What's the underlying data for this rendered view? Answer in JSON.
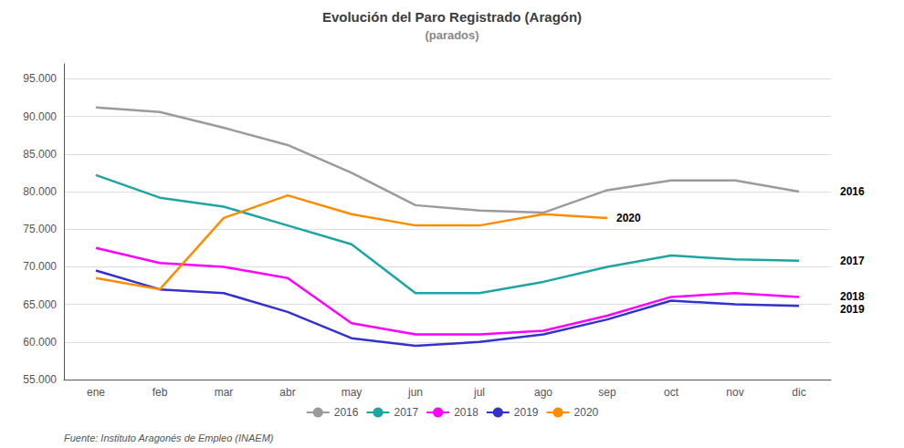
{
  "chart_data": {
    "type": "line",
    "title": "Evolución del Paro Registrado (Aragón)",
    "subtitle": "(parados)",
    "source": "Fuente: Instituto Aragonés de Empleo (INAEM)",
    "categories": [
      "ene",
      "feb",
      "mar",
      "abr",
      "may",
      "jun",
      "jul",
      "ago",
      "sep",
      "oct",
      "nov",
      "dic"
    ],
    "series": [
      {
        "name": "2016",
        "color": "#9b9b9b",
        "values": [
          91200,
          90600,
          88500,
          86200,
          82500,
          78200,
          77500,
          77200,
          80200,
          81500,
          81500,
          80000
        ]
      },
      {
        "name": "2017",
        "color": "#1fa4a4",
        "values": [
          82200,
          79200,
          78000,
          75500,
          73000,
          66500,
          66500,
          68000,
          70000,
          71500,
          71000,
          70800
        ]
      },
      {
        "name": "2018",
        "color": "#ff00ff",
        "values": [
          72500,
          70500,
          70000,
          68500,
          62500,
          61000,
          61000,
          61500,
          63500,
          66000,
          66500,
          66000
        ]
      },
      {
        "name": "2019",
        "color": "#3333cc",
        "values": [
          69500,
          67000,
          66500,
          64000,
          60500,
          59500,
          60000,
          61000,
          63000,
          65500,
          65000,
          64800
        ]
      },
      {
        "name": "2020",
        "color": "#ff8c00",
        "values": [
          68500,
          67000,
          76500,
          79500,
          77000,
          75500,
          75500,
          77000,
          76500,
          null,
          null,
          null
        ]
      }
    ],
    "ylim": [
      55000,
      97000
    ],
    "yticks": [
      {
        "value": 55000,
        "label": "55.000"
      },
      {
        "value": 60000,
        "label": "60.000"
      },
      {
        "value": 65000,
        "label": "65.000"
      },
      {
        "value": 70000,
        "label": "70.000"
      },
      {
        "value": 75000,
        "label": "75.000"
      },
      {
        "value": 80000,
        "label": "80.000"
      },
      {
        "value": 85000,
        "label": "85.000"
      },
      {
        "value": 90000,
        "label": "90.000"
      },
      {
        "value": 95000,
        "label": "95.000"
      }
    ],
    "annotations": [
      {
        "text": "2016",
        "y": 80000
      },
      {
        "text": "2017",
        "y": 70800
      },
      {
        "text": "2018",
        "y": 66000
      },
      {
        "text": "2019",
        "y": 64300
      },
      {
        "text": "2020",
        "x": "sep",
        "y": 76500
      }
    ],
    "grid": true,
    "legend": "bottom"
  }
}
